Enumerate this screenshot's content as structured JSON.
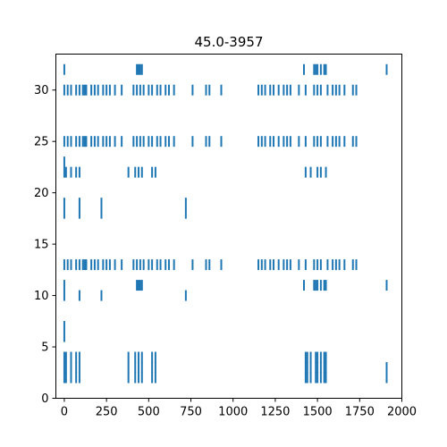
{
  "chart_data": {
    "type": "scatter",
    "marker": "vertical-line",
    "title": "45.0-3957",
    "xlabel": "",
    "ylabel": "",
    "xlim": [
      -50,
      2000
    ],
    "ylim": [
      0,
      33.5
    ],
    "xticks": [
      0,
      250,
      500,
      750,
      1000,
      1250,
      1500,
      1750,
      2000
    ],
    "xtick_labels": [
      "0",
      "250",
      "500",
      "750",
      "1000",
      "1250",
      "1500",
      "1750",
      "2000"
    ],
    "yticks": [
      0,
      5,
      10,
      15,
      20,
      25,
      30
    ],
    "ytick_labels": [
      "0",
      "5",
      "10",
      "15",
      "20",
      "25",
      "30"
    ],
    "grid": false,
    "color": "#1f77b4",
    "series": [
      {
        "y": 2,
        "x": [
          0,
          10,
          40,
          70,
          90,
          380,
          420,
          440,
          460,
          520,
          540,
          1430,
          1440,
          1460,
          1490,
          1500,
          1520,
          1540,
          1550,
          1910
        ]
      },
      {
        "y": 3,
        "x": [
          0,
          10,
          40,
          70,
          90,
          380,
          420,
          440,
          460,
          520,
          540,
          1430,
          1440,
          1460,
          1490,
          1500,
          1520,
          1540,
          1550,
          1910
        ]
      },
      {
        "y": 4,
        "x": [
          0,
          10,
          40,
          70,
          90,
          380,
          420,
          440,
          460,
          520,
          540,
          1430,
          1440,
          1460,
          1490,
          1500,
          1520,
          1540,
          1550
        ]
      },
      {
        "y": 6,
        "x": [
          0
        ]
      },
      {
        "y": 7,
        "x": [
          0
        ]
      },
      {
        "y": 10,
        "x": [
          0,
          90,
          220,
          720
        ]
      },
      {
        "y": 11,
        "x": [
          0,
          430,
          440,
          450,
          460,
          1420,
          1480,
          1490,
          1500,
          1520,
          1540,
          1550,
          1910
        ]
      },
      {
        "y": 13,
        "x": [
          0,
          20,
          40,
          70,
          90,
          110,
          120,
          130,
          160,
          180,
          200,
          230,
          250,
          270,
          300,
          340,
          410,
          430,
          450,
          470,
          500,
          520,
          550,
          570,
          600,
          620,
          650,
          760,
          840,
          860,
          930,
          1150,
          1170,
          1190,
          1220,
          1240,
          1270,
          1300,
          1320,
          1340,
          1390,
          1430,
          1480,
          1500,
          1520,
          1560,
          1590,
          1610,
          1630,
          1660,
          1710,
          1730
        ]
      },
      {
        "y": 18,
        "x": [
          0,
          90,
          220,
          720
        ]
      },
      {
        "y": 19,
        "x": [
          0,
          90,
          220,
          720
        ]
      },
      {
        "y": 22,
        "x": [
          0,
          10,
          40,
          70,
          90,
          380,
          420,
          440,
          460,
          520,
          540,
          1430,
          1460,
          1500,
          1520,
          1550
        ]
      },
      {
        "y": 23,
        "x": [
          0
        ]
      },
      {
        "y": 25,
        "x": [
          0,
          20,
          40,
          70,
          90,
          110,
          120,
          130,
          160,
          180,
          200,
          230,
          250,
          270,
          300,
          340,
          410,
          430,
          450,
          470,
          500,
          520,
          550,
          570,
          600,
          620,
          650,
          760,
          840,
          860,
          930,
          1150,
          1170,
          1190,
          1220,
          1240,
          1270,
          1300,
          1320,
          1340,
          1390,
          1430,
          1480,
          1500,
          1520,
          1560,
          1590,
          1610,
          1630,
          1660,
          1710,
          1730
        ]
      },
      {
        "y": 30,
        "x": [
          0,
          20,
          40,
          70,
          90,
          110,
          120,
          130,
          160,
          180,
          200,
          230,
          250,
          270,
          300,
          340,
          410,
          430,
          450,
          470,
          500,
          520,
          550,
          570,
          600,
          620,
          650,
          760,
          840,
          860,
          930,
          1150,
          1170,
          1190,
          1220,
          1240,
          1270,
          1300,
          1320,
          1340,
          1390,
          1430,
          1480,
          1500,
          1520,
          1560,
          1590,
          1610,
          1630,
          1660,
          1710,
          1730
        ]
      },
      {
        "y": 32,
        "x": [
          0,
          430,
          440,
          450,
          460,
          1420,
          1480,
          1490,
          1500,
          1520,
          1540,
          1550,
          1910
        ]
      }
    ]
  }
}
